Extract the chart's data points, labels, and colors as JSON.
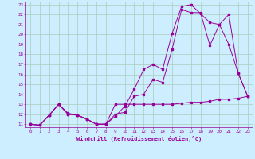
{
  "xlabel": "Windchill (Refroidissement éolien,°C)",
  "background_color": "#cceeff",
  "grid_color": "#aaccbb",
  "line_color": "#990099",
  "xlim": [
    -0.5,
    23.5
  ],
  "ylim": [
    10.7,
    23.3
  ],
  "x_ticks": [
    0,
    1,
    2,
    3,
    4,
    5,
    6,
    7,
    8,
    9,
    10,
    11,
    12,
    13,
    14,
    15,
    16,
    17,
    18,
    19,
    20,
    21,
    22,
    23
  ],
  "y_ticks": [
    11,
    12,
    13,
    14,
    15,
    16,
    17,
    18,
    19,
    20,
    21,
    22,
    23
  ],
  "line1_x": [
    0,
    1,
    2,
    3,
    4,
    5,
    6,
    7,
    8,
    9,
    10,
    11,
    12,
    13,
    14,
    15,
    16,
    17,
    18,
    19,
    20,
    21,
    22,
    23
  ],
  "line1_y": [
    11,
    10.9,
    11.9,
    13,
    12.1,
    11.9,
    11.5,
    11,
    11,
    13,
    13,
    13,
    13,
    13,
    13,
    13,
    13.1,
    13.2,
    13.2,
    13.3,
    13.5,
    13.5,
    13.6,
    13.8
  ],
  "line2_x": [
    0,
    1,
    2,
    3,
    4,
    5,
    6,
    7,
    8,
    9,
    10,
    11,
    12,
    13,
    14,
    15,
    16,
    17,
    18,
    19,
    20,
    21,
    22,
    23
  ],
  "line2_y": [
    11,
    10.9,
    11.9,
    13,
    12,
    11.9,
    11.5,
    11,
    11,
    12,
    12.2,
    13.8,
    14,
    15.5,
    15.2,
    18.5,
    22.5,
    22.2,
    22.2,
    18.9,
    21,
    22,
    16.1,
    13.8
  ],
  "line3_x": [
    0,
    1,
    2,
    3,
    4,
    5,
    6,
    7,
    8,
    9,
    10,
    11,
    12,
    13,
    14,
    15,
    16,
    17,
    18,
    19,
    20,
    21,
    22,
    23
  ],
  "line3_y": [
    11,
    10.9,
    11.9,
    13,
    12,
    11.9,
    11.5,
    11,
    11,
    11.8,
    12.8,
    14.5,
    16.5,
    17,
    16.5,
    20.1,
    22.8,
    23,
    22.1,
    21.2,
    21,
    19,
    16.1,
    13.8
  ],
  "tick_fontsize": 4.2,
  "xlabel_fontsize": 5.0
}
